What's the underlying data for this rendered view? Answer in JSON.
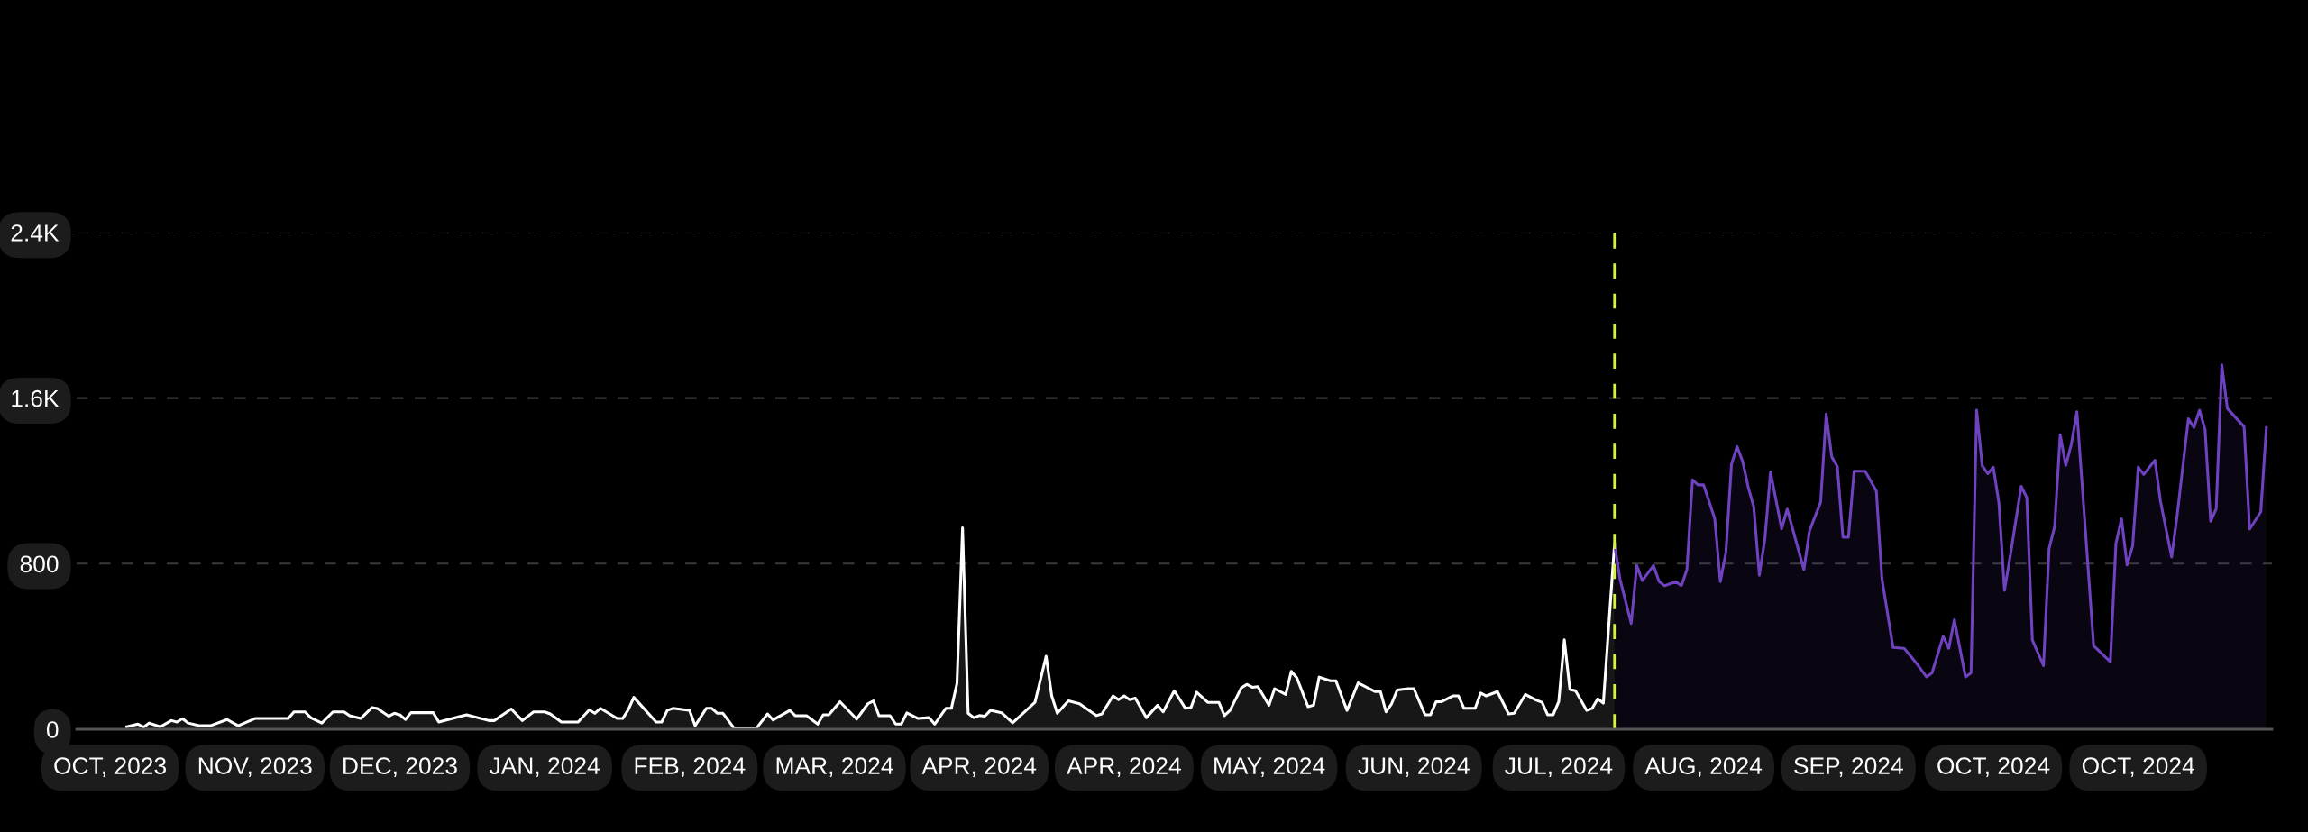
{
  "chart_data": {
    "type": "area",
    "xlim": [
      "2023-10-25",
      "2024-11-22"
    ],
    "ylim": [
      0,
      2400
    ],
    "xticks": [
      {
        "value": "2023-10-31",
        "label": "OCT, 2023"
      },
      {
        "value": "2023-11-26",
        "label": "NOV, 2023"
      },
      {
        "value": "2023-12-22",
        "label": "DEC, 2023"
      },
      {
        "value": "2024-01-17",
        "label": "JAN, 2024"
      },
      {
        "value": "2024-02-12",
        "label": "FEB, 2024"
      },
      {
        "value": "2024-03-09",
        "label": "MAR, 2024"
      },
      {
        "value": "2024-04-04",
        "label": "APR, 2024"
      },
      {
        "value": "2024-04-30",
        "label": "APR, 2024"
      },
      {
        "value": "2024-05-26",
        "label": "MAY, 2024"
      },
      {
        "value": "2024-06-21",
        "label": "JUN, 2024"
      },
      {
        "value": "2024-07-17",
        "label": "JUL, 2024"
      },
      {
        "value": "2024-08-12",
        "label": "AUG, 2024"
      },
      {
        "value": "2024-09-07",
        "label": "SEP, 2024"
      },
      {
        "value": "2024-10-03",
        "label": "OCT, 2024"
      },
      {
        "value": "2024-10-29",
        "label": "OCT, 2024"
      }
    ],
    "yticks": [
      0,
      800,
      {
        "value": 1600,
        "label": "1.6K"
      },
      {
        "value": 2400,
        "label": "2.4K"
      }
    ],
    "grid": "y",
    "legend": false,
    "line_style": "solid",
    "ref_lines": [
      {
        "axis": "x",
        "value": "2024-07-27",
        "color": "#d4f53c",
        "line_style": "dashed"
      }
    ],
    "series": [
      {
        "color": "#ffffff",
        "x": [
          "2023-11-03",
          "2023-11-05",
          "2023-11-06",
          "2023-11-07",
          "2023-11-09",
          "2023-11-11",
          "2023-11-12",
          "2023-11-13",
          "2023-11-14",
          "2023-11-16",
          "2023-11-18",
          "2023-11-21",
          "2023-11-23",
          "2023-11-26",
          "2023-12-02",
          "2023-12-03",
          "2023-12-05",
          "2023-12-06",
          "2023-12-08",
          "2023-12-10",
          "2023-12-12",
          "2023-12-13",
          "2023-12-15",
          "2023-12-17",
          "2023-12-18",
          "2023-12-20",
          "2023-12-21",
          "2023-12-22",
          "2023-12-23",
          "2023-12-24",
          "2023-12-28",
          "2023-12-29",
          "2024-01-03",
          "2024-01-07",
          "2024-01-08",
          "2024-01-11",
          "2024-01-13",
          "2024-01-15",
          "2024-01-17",
          "2024-01-18",
          "2024-01-20",
          "2024-01-22",
          "2024-01-23",
          "2024-01-25",
          "2024-01-26",
          "2024-01-27",
          "2024-01-30",
          "2024-01-31",
          "2024-02-01",
          "2024-02-02",
          "2024-02-06",
          "2024-02-07",
          "2024-02-08",
          "2024-02-09",
          "2024-02-12",
          "2024-02-13",
          "2024-02-15",
          "2024-02-16",
          "2024-02-17",
          "2024-02-18",
          "2024-02-20",
          "2024-02-24",
          "2024-02-26",
          "2024-02-27",
          "2024-03-01",
          "2024-03-02",
          "2024-03-04",
          "2024-03-06",
          "2024-03-07",
          "2024-03-08",
          "2024-03-10",
          "2024-03-13",
          "2024-03-15",
          "2024-03-16",
          "2024-03-17",
          "2024-03-19",
          "2024-03-20",
          "2024-03-21",
          "2024-03-22",
          "2024-03-24",
          "2024-03-26",
          "2024-03-27",
          "2024-03-29",
          "2024-03-30",
          "2024-03-31",
          "2024-04-01",
          "2024-04-02",
          "2024-04-03",
          "2024-04-04",
          "2024-04-05",
          "2024-04-06",
          "2024-04-08",
          "2024-04-10",
          "2024-04-14",
          "2024-04-16",
          "2024-04-17",
          "2024-04-18",
          "2024-04-20",
          "2024-04-22",
          "2024-04-25",
          "2024-04-26",
          "2024-04-28",
          "2024-04-29",
          "2024-04-30",
          "2024-05-01",
          "2024-05-02",
          "2024-05-04",
          "2024-05-06",
          "2024-05-07",
          "2024-05-09",
          "2024-05-11",
          "2024-05-12",
          "2024-05-13",
          "2024-05-15",
          "2024-05-17",
          "2024-05-18",
          "2024-05-19",
          "2024-05-21",
          "2024-05-22",
          "2024-05-23",
          "2024-05-24",
          "2024-05-26",
          "2024-05-27",
          "2024-05-29",
          "2024-05-30",
          "2024-05-31",
          "2024-06-02",
          "2024-06-03",
          "2024-06-04",
          "2024-06-06",
          "2024-06-07",
          "2024-06-09",
          "2024-06-11",
          "2024-06-14",
          "2024-06-15",
          "2024-06-16",
          "2024-06-17",
          "2024-06-18",
          "2024-06-20",
          "2024-06-21",
          "2024-06-22",
          "2024-06-23",
          "2024-06-24",
          "2024-06-25",
          "2024-06-26",
          "2024-06-28",
          "2024-06-29",
          "2024-06-30",
          "2024-07-02",
          "2024-07-03",
          "2024-07-04",
          "2024-07-06",
          "2024-07-08",
          "2024-07-09",
          "2024-07-11",
          "2024-07-13",
          "2024-07-14",
          "2024-07-15",
          "2024-07-16",
          "2024-07-17",
          "2024-07-18",
          "2024-07-19",
          "2024-07-20",
          "2024-07-22",
          "2024-07-23",
          "2024-07-24",
          "2024-07-25",
          "2024-07-27"
        ],
        "values": [
          12,
          25,
          10,
          30,
          12,
          42,
          35,
          51,
          30,
          17,
          17,
          47,
          17,
          52,
          52,
          84,
          84,
          56,
          30,
          84,
          84,
          65,
          52,
          105,
          100,
          63,
          77,
          70,
          47,
          80,
          80,
          35,
          70,
          42,
          42,
          98,
          42,
          84,
          84,
          74,
          35,
          35,
          35,
          94,
          77,
          101,
          52,
          52,
          94,
          154,
          35,
          35,
          91,
          101,
          91,
          17,
          101,
          101,
          77,
          77,
          5,
          5,
          74,
          45,
          91,
          65,
          65,
          25,
          70,
          70,
          133,
          49,
          123,
          137,
          65,
          65,
          25,
          25,
          79,
          52,
          56,
          25,
          101,
          101,
          222,
          973,
          77,
          56,
          66,
          63,
          91,
          80,
          31,
          130,
          353,
          161,
          77,
          137,
          123,
          66,
          74,
          161,
          143,
          161,
          143,
          150,
          56,
          116,
          84,
          186,
          101,
          105,
          179,
          130,
          130,
          66,
          91,
          199,
          217,
          203,
          206,
          116,
          196,
          168,
          280,
          248,
          109,
          116,
          252,
          234,
          234,
          91,
          224,
          182,
          182,
          84,
          123,
          189,
          196,
          196,
          133,
          70,
          70,
          133,
          133,
          161,
          161,
          101,
          101,
          175,
          161,
          182,
          74,
          77,
          168,
          140,
          130,
          70,
          70,
          133,
          432,
          192,
          186,
          91,
          101,
          147,
          126,
          893
        ]
      },
      {
        "color": "#6f42c1",
        "x": [
          "2024-07-27",
          "2024-07-28",
          "2024-07-30",
          "2024-07-31",
          "2024-08-01",
          "2024-08-03",
          "2024-08-04",
          "2024-08-05",
          "2024-08-07",
          "2024-08-08",
          "2024-08-09",
          "2024-08-10",
          "2024-08-11",
          "2024-08-12",
          "2024-08-14",
          "2024-08-15",
          "2024-08-16",
          "2024-08-17",
          "2024-08-18",
          "2024-08-19",
          "2024-08-20",
          "2024-08-21",
          "2024-08-22",
          "2024-08-23",
          "2024-08-24",
          "2024-08-26",
          "2024-08-27",
          "2024-08-30",
          "2024-08-31",
          "2024-09-02",
          "2024-09-03",
          "2024-09-04",
          "2024-09-05",
          "2024-09-06",
          "2024-09-07",
          "2024-09-08",
          "2024-09-10",
          "2024-09-12",
          "2024-09-13",
          "2024-09-15",
          "2024-09-17",
          "2024-09-19",
          "2024-09-21",
          "2024-09-22",
          "2024-09-24",
          "2024-09-25",
          "2024-09-26",
          "2024-09-28",
          "2024-09-29",
          "2024-09-30",
          "2024-10-01",
          "2024-10-02",
          "2024-10-03",
          "2024-10-04",
          "2024-10-05",
          "2024-10-06",
          "2024-10-08",
          "2024-10-09",
          "2024-10-10",
          "2024-10-12",
          "2024-10-13",
          "2024-10-14",
          "2024-10-15",
          "2024-10-16",
          "2024-10-17",
          "2024-10-18",
          "2024-10-21",
          "2024-10-24",
          "2024-10-25",
          "2024-10-26",
          "2024-10-27",
          "2024-10-28",
          "2024-10-29",
          "2024-10-30",
          "2024-11-01",
          "2024-11-02",
          "2024-11-04",
          "2024-11-05",
          "2024-11-07",
          "2024-11-08",
          "2024-11-09",
          "2024-11-10",
          "2024-11-11",
          "2024-11-12",
          "2024-11-13",
          "2024-11-14",
          "2024-11-17",
          "2024-11-18",
          "2024-11-20",
          "2024-11-21"
        ],
        "values": [
          893,
          725,
          511,
          791,
          718,
          791,
          714,
          693,
          713,
          694,
          771,
          1205,
          1181,
          1181,
          1017,
          713,
          854,
          1281,
          1366,
          1295,
          1170,
          1074,
          744,
          921,
          1243,
          969,
          1064,
          771,
          959,
          1097,
          1523,
          1316,
          1270,
          928,
          928,
          1247,
          1247,
          1151,
          729,
          395,
          391,
          326,
          253,
          272,
          449,
          391,
          529,
          253,
          272,
          1542,
          1274,
          1235,
          1266,
          1093,
          671,
          832,
          1174,
          1120,
          432,
          307,
          873,
          978,
          1423,
          1275,
          1377,
          1534,
          403,
          326,
          898,
          1017,
          794,
          886,
          1266,
          1231,
          1300,
          1101,
          832,
          1036,
          1500,
          1458,
          1542,
          1448,
          1005,
          1066,
          1761,
          1550,
          1462,
          967,
          1051,
          1458
        ]
      }
    ]
  }
}
